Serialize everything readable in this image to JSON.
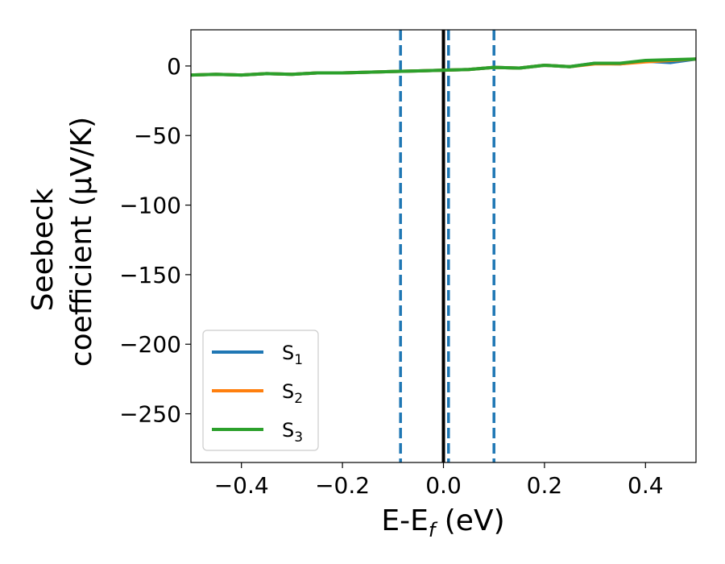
{
  "chart_data": {
    "type": "line",
    "xlabel": "E-E_f (eV)",
    "xlabel_main": "E-E",
    "xlabel_sub": "f",
    "xlabel_rest": " (eV)",
    "ylabel_line1": "Seebeck",
    "ylabel_line2": "coefficient  (μV/K)",
    "xlim": [
      -0.5,
      0.5
    ],
    "ylim": [
      -285,
      26
    ],
    "x_ticks": [
      -0.4,
      -0.2,
      0.0,
      0.2,
      0.4
    ],
    "x_tick_labels": [
      "−0.4",
      "−0.2",
      "0.0",
      "0.2",
      "0.4"
    ],
    "y_ticks": [
      0,
      -50,
      -100,
      -150,
      -200,
      -250
    ],
    "y_tick_labels": [
      "0",
      "−50",
      "−100",
      "−150",
      "−200",
      "−250"
    ],
    "grid": false,
    "legend_position": "lower-left",
    "vertical_lines": [
      {
        "x": 0.0,
        "style": "solid",
        "color": "#000000"
      },
      {
        "x": -0.085,
        "style": "dashed",
        "color": "#1f77b4"
      },
      {
        "x": 0.01,
        "style": "dashed",
        "color": "#1f77b4"
      },
      {
        "x": 0.1,
        "style": "dashed",
        "color": "#1f77b4"
      }
    ],
    "x": [
      -0.5,
      -0.45,
      -0.4,
      -0.35,
      -0.3,
      -0.25,
      -0.2,
      -0.15,
      -0.1,
      -0.05,
      0.0,
      0.05,
      0.1,
      0.15,
      0.2,
      0.25,
      0.3,
      0.35,
      0.4,
      0.45,
      0.5
    ],
    "series": [
      {
        "name": "S",
        "sub": "1",
        "color": "#1f77b4",
        "values": [
          -6.5,
          -6,
          -6.5,
          -5.5,
          -6,
          -5,
          -5,
          -4.5,
          -4,
          -3.5,
          -3,
          -2.5,
          -1,
          -1.5,
          0.5,
          -0.5,
          2,
          1.5,
          3.5,
          2.5,
          5
        ]
      },
      {
        "name": "S",
        "sub": "2",
        "color": "#ff7f0e",
        "values": [
          -6.5,
          -6,
          -6.5,
          -5.5,
          -6,
          -5,
          -5,
          -4.5,
          -4,
          -3.5,
          -3,
          -2.5,
          -1,
          -1.5,
          0.5,
          -0.5,
          1.5,
          1.5,
          3,
          4,
          5
        ]
      },
      {
        "name": "S",
        "sub": "3",
        "color": "#2ca02c",
        "values": [
          -6.5,
          -6,
          -6.5,
          -5.5,
          -6,
          -5,
          -5,
          -4.5,
          -4,
          -3.5,
          -3,
          -2.5,
          -1,
          -1.5,
          0.5,
          -0.5,
          2,
          2,
          4,
          4.5,
          5
        ]
      }
    ]
  }
}
